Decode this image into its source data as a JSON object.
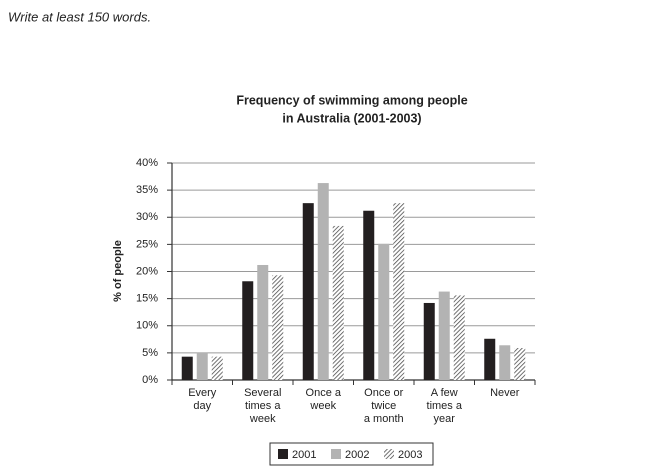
{
  "prompt": "Write at least 150 words.",
  "chart_data": {
    "type": "bar",
    "title": "Frequency of swimming among people",
    "subtitle": "in Australia (2001-2003)",
    "y_label": "% of people",
    "categories": [
      "Every\nday",
      "Several\ntimes a\nweek",
      "Once a\nweek",
      "Once or\ntwice\na month",
      "A few\ntimes a\nyear",
      "Never"
    ],
    "series": [
      {
        "name": "2001",
        "color": "#231f20",
        "values": [
          4.3,
          18.2,
          32.6,
          31.2,
          14.2,
          7.6
        ]
      },
      {
        "name": "2002",
        "color": "#b3b3b3",
        "values": [
          5.0,
          21.2,
          36.3,
          25.1,
          16.3,
          6.4
        ]
      },
      {
        "name": "2003",
        "color": "#4d4d4d",
        "hatch": true,
        "values": [
          4.3,
          19.3,
          28.4,
          32.6,
          15.6,
          5.9
        ]
      }
    ],
    "ylim": [
      0,
      40
    ],
    "yticks": [
      {
        "value": 0,
        "label": "0%"
      },
      {
        "value": 5,
        "label": "5%"
      },
      {
        "value": 10,
        "label": "10%"
      },
      {
        "value": 15,
        "label": "15%"
      },
      {
        "value": 20,
        "label": "20%"
      },
      {
        "value": 25,
        "label": "25%"
      },
      {
        "value": 30,
        "label": "30%"
      },
      {
        "value": 35,
        "label": "35%"
      },
      {
        "value": 40,
        "label": "40%"
      }
    ],
    "grid": true,
    "legend": "bottom"
  }
}
